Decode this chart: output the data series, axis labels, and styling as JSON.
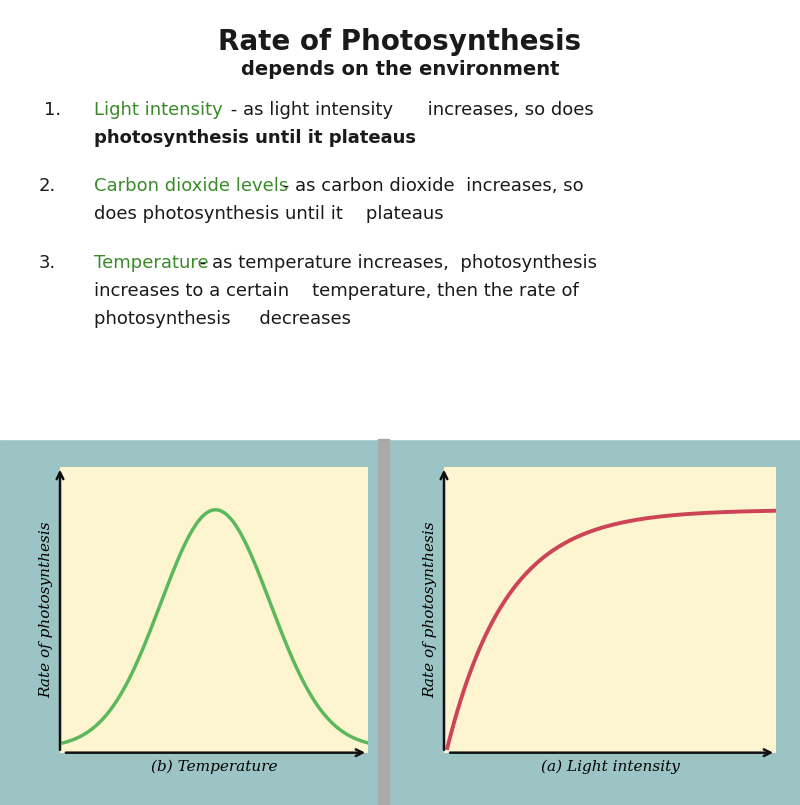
{
  "title_line1": "Rate of Photosynthesis",
  "title_line2": "depends on the environment",
  "title_color": "#1a1a1a",
  "title_fontsize": 20,
  "subtitle_fontsize": 14,
  "bg_color": "#ffffff",
  "panel_bg_color": "#9dc4c4",
  "plot_bg_color": "#fdf5d0",
  "text_color": "#1a1a1a",
  "green_text_color": "#3a8a2a",
  "green_line_color": "#5cb85c",
  "red_line_color": "#cc4455",
  "axis_color": "#111111",
  "graph_left_ylabel": "Rate of photosynthesis",
  "graph_right_ylabel": "Rate of photosynthesis",
  "graph_left_xlabel": "(b) Temperature",
  "graph_right_xlabel": "(a) Light intensity",
  "label_fontsize": 10,
  "text_fontsize": 13
}
